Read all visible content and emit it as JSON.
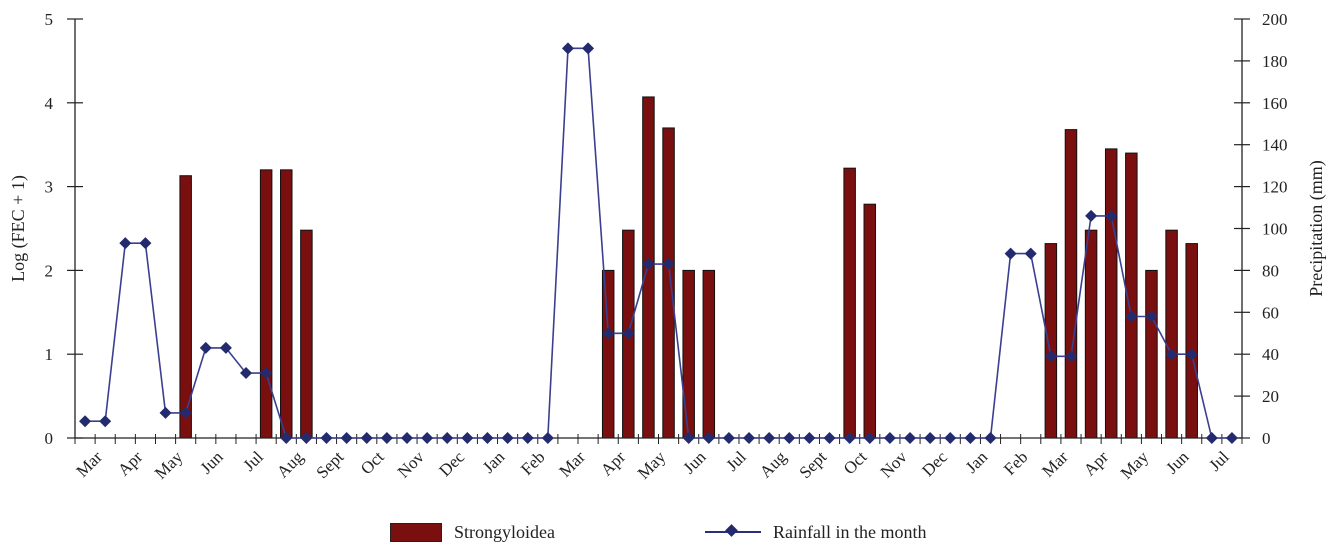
{
  "chart_data": {
    "type": "bar+line",
    "categories": [
      "Mar",
      "Apr",
      "May",
      "Jun",
      "Jul",
      "Aug",
      "Sept",
      "Oct",
      "Nov",
      "Dec",
      "Jan",
      "Feb",
      "Mar",
      "Apr",
      "May",
      "Jun",
      "Jul",
      "Aug",
      "Sept",
      "Oct",
      "Nov",
      "Dec",
      "Jan",
      "Feb",
      "Mar",
      "Apr",
      "May",
      "Jun",
      "Jul"
    ],
    "yticks_left": [
      "0",
      "1",
      "2",
      "3",
      "4",
      "5"
    ],
    "yticks_right": [
      "0",
      "20",
      "40",
      "60",
      "80",
      "100",
      "120",
      "140",
      "160",
      "180",
      "200"
    ],
    "ylabel_left": "Log (FEC + 1)",
    "ylabel_right": "Precipitation (mm)",
    "ylim_left": [
      0,
      5
    ],
    "ylim_right": [
      0,
      200
    ],
    "series": [
      {
        "name": "Strongyloidea",
        "kind": "bar",
        "axis": "left",
        "color": "#7a0f0f",
        "x": [
          5.5,
          9.5,
          10.5,
          11.5,
          26.5,
          27.5,
          28.5,
          29.5,
          30.5,
          31.5,
          38.5,
          39.5,
          48.5,
          49.5,
          50.5,
          51.5,
          52.5,
          53.5,
          54.5,
          55.5
        ],
        "values": [
          3.13,
          3.2,
          3.2,
          2.48,
          2.0,
          2.48,
          4.07,
          3.7,
          2.0,
          2.0,
          3.22,
          2.79,
          2.32,
          3.68,
          2.48,
          3.45,
          3.4,
          2.0,
          2.48,
          2.32
        ]
      },
      {
        "name": "Rainfall in the month",
        "kind": "line",
        "axis": "right",
        "color": "#232b6e",
        "x": [
          0.5,
          1.5,
          2.5,
          3.5,
          4.5,
          5.5,
          6.5,
          7.5,
          8.5,
          9.5,
          10.5,
          11.5,
          12.5,
          13.5,
          14.5,
          15.5,
          16.5,
          17.5,
          18.5,
          19.5,
          20.5,
          21.5,
          22.5,
          23.5,
          24.5,
          25.5,
          26.5,
          27.5,
          28.5,
          29.5,
          30.5,
          31.5,
          32.5,
          33.5,
          34.5,
          35.5,
          36.5,
          37.5,
          38.5,
          39.5,
          40.5,
          41.5,
          42.5,
          43.5,
          44.5,
          45.5,
          46.5,
          47.5,
          48.5,
          49.5,
          50.5,
          51.5,
          52.5,
          53.5,
          54.5,
          55.5,
          56.5,
          57.5
        ],
        "values": [
          8,
          8,
          93,
          93,
          12,
          12,
          43,
          43,
          31,
          31,
          0,
          0,
          0,
          0,
          0,
          0,
          0,
          0,
          0,
          0,
          0,
          0,
          0,
          0,
          186,
          186,
          50,
          50,
          83,
          83,
          0,
          0,
          0,
          0,
          0,
          0,
          0,
          0,
          0,
          0,
          0,
          0,
          0,
          0,
          0,
          0,
          88,
          88,
          39,
          39,
          106,
          106,
          58,
          58,
          40,
          40,
          0,
          0
        ]
      }
    ],
    "legend_position": "bottom",
    "grid": false
  }
}
